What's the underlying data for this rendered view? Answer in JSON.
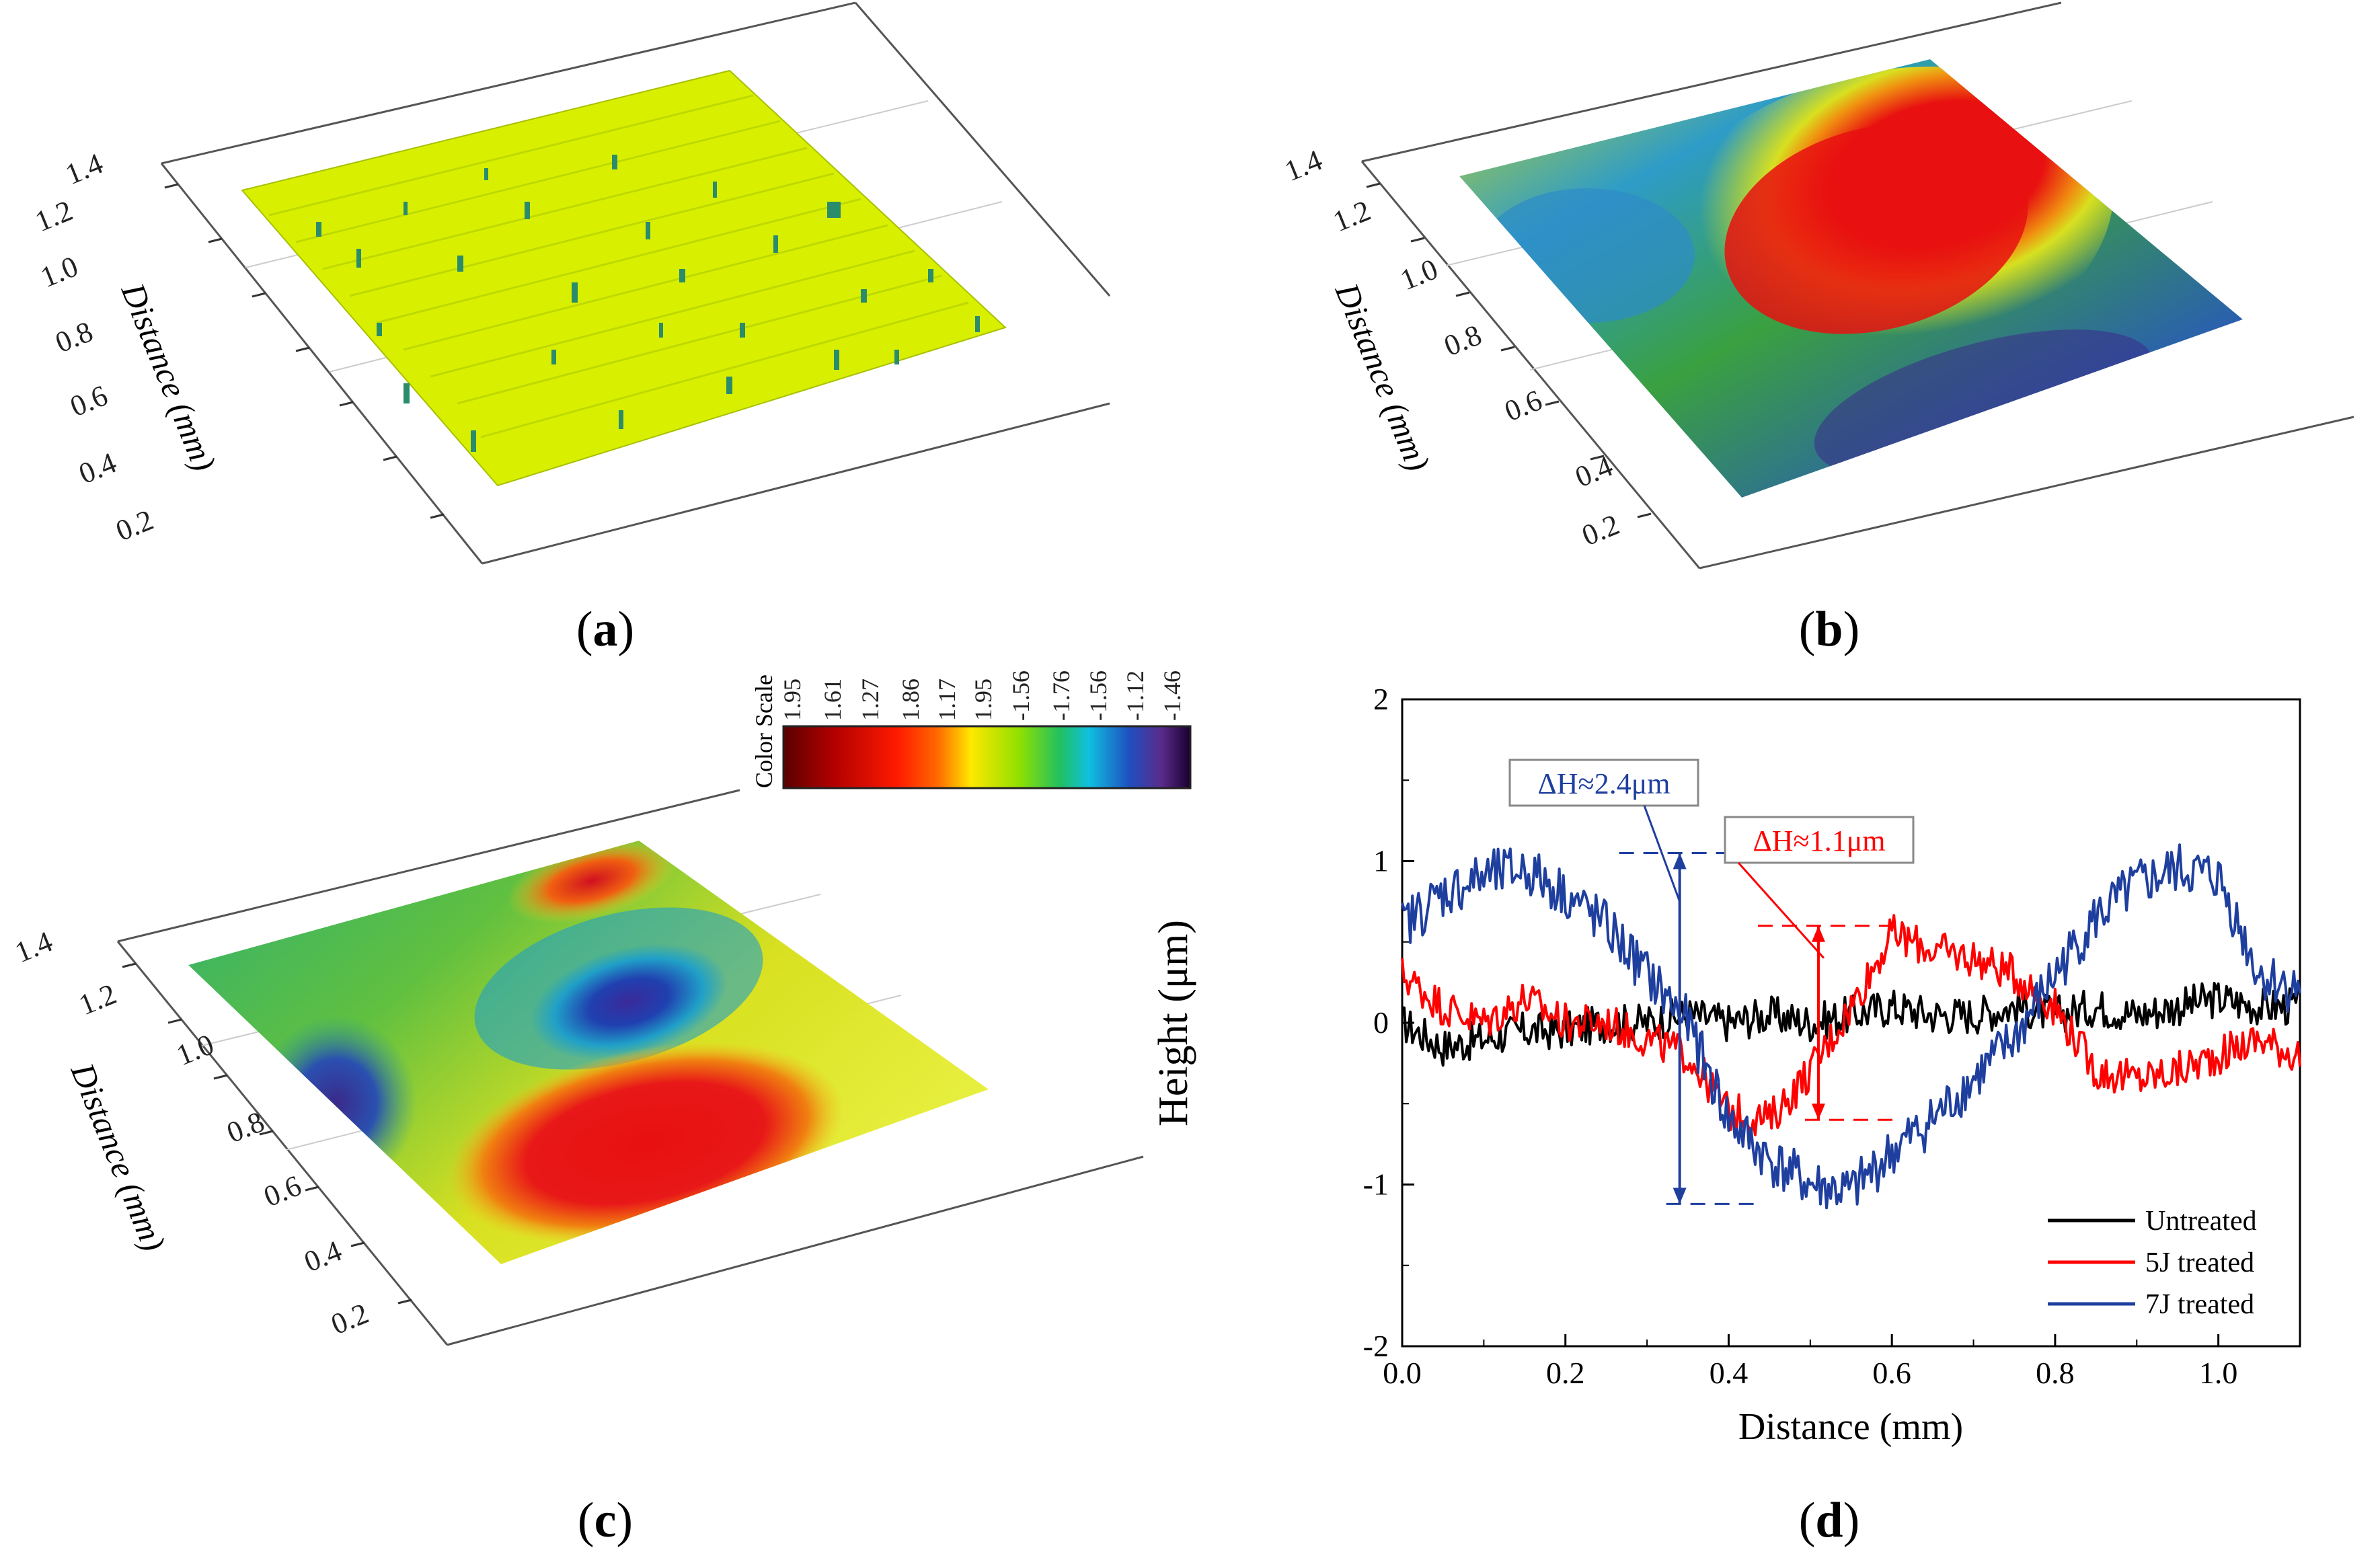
{
  "figure": {
    "panels": [
      {
        "id": "a",
        "label_open": "(",
        "letter": "a",
        "label_close": ")",
        "surface": "untreated",
        "axis_label": "Distance (mm)",
        "y_ticks": [
          "0.2",
          "0.4",
          "0.6",
          "0.8",
          "1.0",
          "1.2",
          "1.4"
        ]
      },
      {
        "id": "b",
        "label_open": "(",
        "letter": "b",
        "label_close": ")",
        "surface": "5J treated",
        "axis_label": "Distance (mm)",
        "y_ticks": [
          "0.2",
          "0.4",
          "0.6",
          "0.8",
          "1.0",
          "1.2",
          "1.4"
        ]
      },
      {
        "id": "c",
        "label_open": "(",
        "letter": "c",
        "label_close": ")",
        "surface": "7J treated",
        "axis_label": "Distance (mm)",
        "y_ticks": [
          "0.2",
          "0.4",
          "0.6",
          "0.8",
          "1.0",
          "1.2",
          "1.4"
        ]
      },
      {
        "id": "d",
        "label_open": "(",
        "letter": "d",
        "label_close": ")"
      }
    ],
    "color_scale": {
      "title": "Color Scale",
      "values": [
        "1.95",
        "1.61",
        "1.27",
        "1.86",
        "1.17",
        "1.95",
        "-1.56",
        "-1.76",
        "-1.56",
        "-1.12",
        "-1.46"
      ],
      "colors": [
        "#5a0000",
        "#a00000",
        "#e00000",
        "#ff2000",
        "#ff8000",
        "#ffff00",
        "#90e000",
        "#00c060",
        "#00c0e0",
        "#1040c0",
        "#602080",
        "#200040"
      ]
    },
    "surface_colors": {
      "yellow": "#d8f000",
      "green": "#3fb030",
      "cyan": "#20a0c8",
      "blue": "#1f3f9f",
      "red": "#e81010",
      "dark_red": "#b00010",
      "orange": "#f07010",
      "purple": "#5a2a8a"
    }
  },
  "chart_data": [
    {
      "type": "surface3d",
      "panel": "a",
      "title": "",
      "ylabel": "Distance (mm)",
      "y_ticks": [
        0.2,
        0.4,
        0.6,
        0.8,
        1.0,
        1.2,
        1.4
      ],
      "description_value": "untreated surface, flat, uniform height"
    },
    {
      "type": "surface3d",
      "panel": "b",
      "title": "",
      "ylabel": "Distance (mm)",
      "y_ticks": [
        0.2,
        0.4,
        0.6,
        0.8,
        1.0,
        1.2,
        1.4
      ]
    },
    {
      "type": "surface3d",
      "panel": "c",
      "title": "",
      "ylabel": "Distance (mm)",
      "y_ticks": [
        0.2,
        0.4,
        0.6,
        0.8,
        1.0,
        1.2,
        1.4
      ],
      "zlabel": "Height (μm)"
    },
    {
      "type": "line",
      "panel": "d",
      "xlabel": "Distance (mm)",
      "ylabel": "",
      "xlim": [
        0.0,
        1.1
      ],
      "ylim": [
        -2,
        2
      ],
      "x_ticks": [
        "0.0",
        "0.2",
        "0.4",
        "0.6",
        "0.8",
        "1.0"
      ],
      "y_ticks": [
        "-2",
        "-1",
        "0",
        "1",
        "2"
      ],
      "legend_position": "bottom-right",
      "series": [
        {
          "name": "Untreated",
          "color": "#000000",
          "x": [
            0.0,
            0.05,
            0.1,
            0.15,
            0.2,
            0.25,
            0.3,
            0.35,
            0.4,
            0.45,
            0.5,
            0.55,
            0.6,
            0.65,
            0.7,
            0.75,
            0.8,
            0.85,
            0.9,
            0.95,
            1.0,
            1.05,
            1.1
          ],
          "y": [
            0.0,
            -0.15,
            -0.1,
            -0.05,
            -0.05,
            0.0,
            0.0,
            0.05,
            0.0,
            0.05,
            0.0,
            0.05,
            0.1,
            0.05,
            0.05,
            0.1,
            0.05,
            0.1,
            0.05,
            0.1,
            0.15,
            0.1,
            0.1
          ]
        },
        {
          "name": "5J treated",
          "color": "#ff0000",
          "x": [
            0.0,
            0.05,
            0.1,
            0.15,
            0.2,
            0.25,
            0.3,
            0.35,
            0.4,
            0.45,
            0.5,
            0.55,
            0.6,
            0.65,
            0.7,
            0.75,
            0.8,
            0.85,
            0.9,
            0.95,
            1.0,
            1.05,
            1.1
          ],
          "y": [
            0.3,
            0.1,
            0.0,
            0.15,
            0.0,
            0.0,
            -0.1,
            -0.2,
            -0.55,
            -0.6,
            -0.3,
            0.1,
            0.55,
            0.45,
            0.4,
            0.3,
            0.1,
            -0.3,
            -0.35,
            -0.3,
            -0.2,
            -0.1,
            -0.2
          ]
        },
        {
          "name": "7J treated",
          "color": "#1f3f9f",
          "x": [
            0.0,
            0.05,
            0.1,
            0.15,
            0.2,
            0.25,
            0.3,
            0.35,
            0.4,
            0.45,
            0.5,
            0.55,
            0.6,
            0.65,
            0.7,
            0.75,
            0.8,
            0.85,
            0.9,
            0.95,
            1.0,
            1.05,
            1.1
          ],
          "y": [
            0.6,
            0.8,
            0.9,
            0.95,
            0.8,
            0.6,
            0.3,
            0.0,
            -0.6,
            -0.85,
            -1.0,
            -1.05,
            -0.8,
            -0.6,
            -0.35,
            -0.1,
            0.3,
            0.65,
            0.85,
            0.95,
            0.9,
            0.3,
            0.2
          ]
        }
      ],
      "annotations": [
        {
          "text": "ΔH≈2.4μm",
          "color": "#1f3f9f",
          "x": 0.34,
          "y_top": 1.05,
          "y_bottom": -1.12
        },
        {
          "text": "ΔH≈1.1μm",
          "color": "#ff0000",
          "x": 0.51,
          "y_top": 0.6,
          "y_bottom": -0.6
        }
      ]
    }
  ]
}
